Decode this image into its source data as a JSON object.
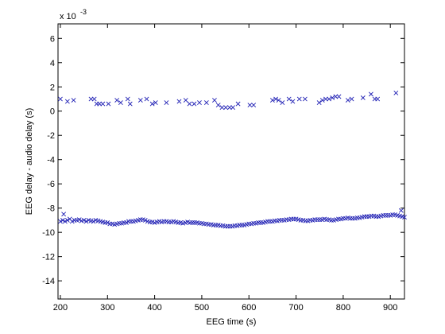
{
  "chart_data": {
    "type": "scatter",
    "title": "",
    "xlabel": "EEG time (s)",
    "ylabel": "EEG delay - audio delay (s)",
    "y_multiplier_label": "x 10",
    "y_multiplier_exponent": "-3",
    "xlim": [
      195,
      930
    ],
    "ylim": [
      -15.5,
      7.2
    ],
    "xticks": [
      200,
      300,
      400,
      500,
      600,
      700,
      800,
      900
    ],
    "yticks": [
      6,
      4,
      2,
      0,
      -2,
      -4,
      -6,
      -8,
      -10,
      -12,
      -14
    ],
    "marker": "x",
    "marker_color": "#1f1fb4",
    "grid": false,
    "series": [
      {
        "name": "",
        "points": [
          [
            200,
            1.0
          ],
          [
            215,
            0.8
          ],
          [
            228,
            0.9
          ],
          [
            265,
            1.0
          ],
          [
            272,
            1.0
          ],
          [
            277,
            0.6
          ],
          [
            283,
            0.6
          ],
          [
            290,
            0.6
          ],
          [
            302,
            0.6
          ],
          [
            320,
            0.9
          ],
          [
            328,
            0.7
          ],
          [
            343,
            1.0
          ],
          [
            348,
            0.6
          ],
          [
            370,
            0.9
          ],
          [
            383,
            1.0
          ],
          [
            395,
            0.6
          ],
          [
            402,
            0.7
          ],
          [
            425,
            0.7
          ],
          [
            452,
            0.8
          ],
          [
            466,
            0.9
          ],
          [
            474,
            0.6
          ],
          [
            484,
            0.6
          ],
          [
            495,
            0.7
          ],
          [
            510,
            0.7
          ],
          [
            527,
            0.9
          ],
          [
            535,
            0.5
          ],
          [
            543,
            0.3
          ],
          [
            551,
            0.3
          ],
          [
            559,
            0.3
          ],
          [
            566,
            0.3
          ],
          [
            577,
            0.6
          ],
          [
            602,
            0.5
          ],
          [
            610,
            0.5
          ],
          [
            650,
            0.9
          ],
          [
            657,
            1.0
          ],
          [
            663,
            0.9
          ],
          [
            671,
            0.7
          ],
          [
            685,
            1.0
          ],
          [
            693,
            0.8
          ],
          [
            707,
            1.0
          ],
          [
            719,
            1.0
          ],
          [
            749,
            0.7
          ],
          [
            756,
            0.9
          ],
          [
            763,
            1.0
          ],
          [
            770,
            1.0
          ],
          [
            777,
            1.1
          ],
          [
            784,
            1.2
          ],
          [
            791,
            1.2
          ],
          [
            810,
            0.9
          ],
          [
            818,
            1.0
          ],
          [
            842,
            1.1
          ],
          [
            859,
            1.4
          ],
          [
            867,
            1.0
          ],
          [
            873,
            1.0
          ],
          [
            912,
            1.5
          ]
        ]
      },
      {
        "name": "",
        "points": [
          [
            200,
            -9.1
          ],
          [
            205,
            -9.0
          ],
          [
            210,
            -9.1
          ],
          [
            215,
            -9.0
          ],
          [
            220,
            -8.9
          ],
          [
            225,
            -9.1
          ],
          [
            230,
            -9.0
          ],
          [
            235,
            -9.0
          ],
          [
            240,
            -8.95
          ],
          [
            245,
            -9.05
          ],
          [
            250,
            -9.0
          ],
          [
            255,
            -9.1
          ],
          [
            260,
            -9.0
          ],
          [
            265,
            -9.05
          ],
          [
            270,
            -9.1
          ],
          [
            275,
            -9.0
          ],
          [
            280,
            -9.05
          ],
          [
            285,
            -9.1
          ],
          [
            290,
            -9.15
          ],
          [
            295,
            -9.2
          ],
          [
            300,
            -9.2
          ],
          [
            305,
            -9.3
          ],
          [
            310,
            -9.3
          ],
          [
            315,
            -9.35
          ],
          [
            320,
            -9.3
          ],
          [
            325,
            -9.25
          ],
          [
            330,
            -9.25
          ],
          [
            335,
            -9.2
          ],
          [
            340,
            -9.2
          ],
          [
            345,
            -9.1
          ],
          [
            350,
            -9.1
          ],
          [
            355,
            -9.1
          ],
          [
            360,
            -9.05
          ],
          [
            365,
            -9.0
          ],
          [
            370,
            -8.95
          ],
          [
            375,
            -8.95
          ],
          [
            380,
            -9.0
          ],
          [
            385,
            -9.1
          ],
          [
            390,
            -9.15
          ],
          [
            395,
            -9.15
          ],
          [
            400,
            -9.2
          ],
          [
            405,
            -9.15
          ],
          [
            410,
            -9.1
          ],
          [
            415,
            -9.15
          ],
          [
            420,
            -9.1
          ],
          [
            425,
            -9.1
          ],
          [
            430,
            -9.15
          ],
          [
            435,
            -9.15
          ],
          [
            440,
            -9.1
          ],
          [
            445,
            -9.15
          ],
          [
            450,
            -9.2
          ],
          [
            455,
            -9.2
          ],
          [
            460,
            -9.25
          ],
          [
            465,
            -9.2
          ],
          [
            470,
            -9.15
          ],
          [
            475,
            -9.2
          ],
          [
            480,
            -9.2
          ],
          [
            485,
            -9.2
          ],
          [
            490,
            -9.2
          ],
          [
            495,
            -9.25
          ],
          [
            500,
            -9.25
          ],
          [
            505,
            -9.3
          ],
          [
            510,
            -9.3
          ],
          [
            515,
            -9.35
          ],
          [
            520,
            -9.35
          ],
          [
            525,
            -9.4
          ],
          [
            530,
            -9.4
          ],
          [
            535,
            -9.4
          ],
          [
            540,
            -9.45
          ],
          [
            545,
            -9.45
          ],
          [
            550,
            -9.5
          ],
          [
            555,
            -9.5
          ],
          [
            560,
            -9.5
          ],
          [
            565,
            -9.5
          ],
          [
            570,
            -9.45
          ],
          [
            575,
            -9.45
          ],
          [
            580,
            -9.4
          ],
          [
            585,
            -9.4
          ],
          [
            590,
            -9.4
          ],
          [
            595,
            -9.35
          ],
          [
            600,
            -9.3
          ],
          [
            605,
            -9.3
          ],
          [
            610,
            -9.25
          ],
          [
            615,
            -9.25
          ],
          [
            620,
            -9.2
          ],
          [
            625,
            -9.2
          ],
          [
            630,
            -9.2
          ],
          [
            635,
            -9.15
          ],
          [
            640,
            -9.1
          ],
          [
            645,
            -9.1
          ],
          [
            650,
            -9.1
          ],
          [
            655,
            -9.05
          ],
          [
            660,
            -9.05
          ],
          [
            665,
            -9.0
          ],
          [
            670,
            -9.0
          ],
          [
            675,
            -9.0
          ],
          [
            680,
            -8.95
          ],
          [
            685,
            -8.95
          ],
          [
            690,
            -8.9
          ],
          [
            695,
            -8.9
          ],
          [
            700,
            -8.9
          ],
          [
            705,
            -8.95
          ],
          [
            710,
            -9.0
          ],
          [
            715,
            -9.0
          ],
          [
            720,
            -9.05
          ],
          [
            725,
            -9.05
          ],
          [
            730,
            -9.0
          ],
          [
            735,
            -9.0
          ],
          [
            740,
            -8.95
          ],
          [
            745,
            -8.95
          ],
          [
            750,
            -8.95
          ],
          [
            755,
            -8.95
          ],
          [
            760,
            -8.9
          ],
          [
            765,
            -8.95
          ],
          [
            770,
            -8.95
          ],
          [
            775,
            -9.0
          ],
          [
            780,
            -9.0
          ],
          [
            785,
            -8.95
          ],
          [
            790,
            -8.9
          ],
          [
            795,
            -8.9
          ],
          [
            800,
            -8.85
          ],
          [
            805,
            -8.85
          ],
          [
            810,
            -8.8
          ],
          [
            815,
            -8.85
          ],
          [
            820,
            -8.85
          ],
          [
            825,
            -8.85
          ],
          [
            830,
            -8.8
          ],
          [
            835,
            -8.8
          ],
          [
            840,
            -8.75
          ],
          [
            845,
            -8.7
          ],
          [
            850,
            -8.7
          ],
          [
            855,
            -8.7
          ],
          [
            860,
            -8.65
          ],
          [
            865,
            -8.65
          ],
          [
            870,
            -8.7
          ],
          [
            875,
            -8.7
          ],
          [
            880,
            -8.65
          ],
          [
            885,
            -8.6
          ],
          [
            890,
            -8.6
          ],
          [
            895,
            -8.6
          ],
          [
            900,
            -8.6
          ],
          [
            905,
            -8.55
          ],
          [
            910,
            -8.55
          ],
          [
            915,
            -8.6
          ],
          [
            920,
            -8.65
          ],
          [
            925,
            -8.7
          ],
          [
            930,
            -8.75
          ],
          [
            207,
            -8.5
          ],
          [
            923,
            -8.2
          ]
        ]
      }
    ]
  }
}
